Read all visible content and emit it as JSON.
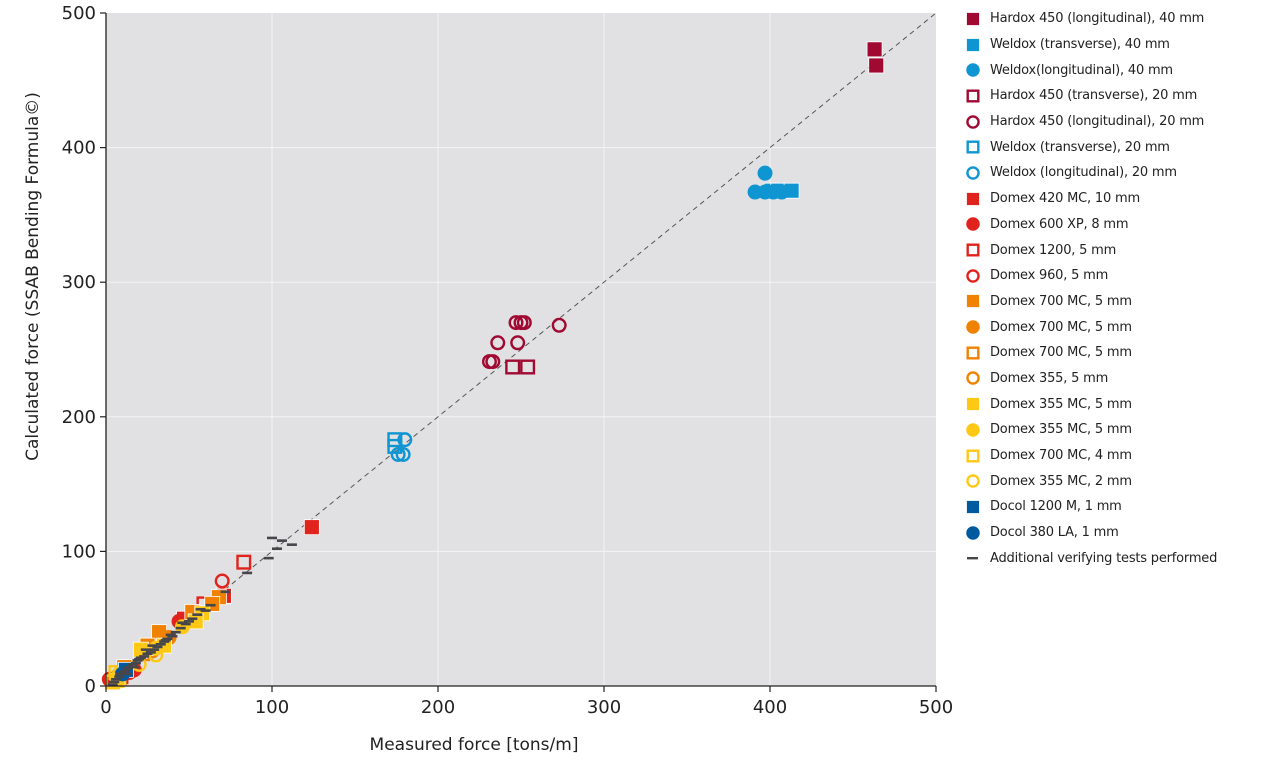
{
  "chart_data": {
    "type": "scatter",
    "title": "",
    "xlabel": "Measured force [tons/m]",
    "ylabel": "Calculated force (SSAB Bending Formula©)",
    "xlim": [
      0,
      500
    ],
    "ylim": [
      0,
      500
    ],
    "xticks": [
      "0",
      "100",
      "200",
      "300",
      "400",
      "500"
    ],
    "yticks": [
      "0",
      "100",
      "200",
      "300",
      "400",
      "500"
    ],
    "grid": true,
    "background": "#e1e1e3",
    "reference_line": {
      "type": "y=x",
      "style": "dashed",
      "color": "#555555"
    },
    "legend_position": "right",
    "series": [
      {
        "name": "Hardox 450 (longitudinal), 40 mm",
        "marker": "square",
        "filled": true,
        "color": "#a00a32",
        "points": [
          [
            463,
            473
          ],
          [
            464,
            461
          ]
        ]
      },
      {
        "name": "Weldox (transverse), 40 mm",
        "marker": "square",
        "filled": true,
        "color": "#0f96d2",
        "points": [
          [
            401,
            368
          ],
          [
            405,
            368
          ],
          [
            413,
            368
          ]
        ]
      },
      {
        "name": "Weldox(longitudinal), 40 mm",
        "marker": "circle",
        "filled": true,
        "color": "#0f96d2",
        "points": [
          [
            397,
            381
          ],
          [
            391,
            367
          ],
          [
            397,
            367
          ],
          [
            402,
            367
          ],
          [
            407,
            367
          ]
        ]
      },
      {
        "name": "Hardox 450 (transverse), 20 mm",
        "marker": "square",
        "filled": false,
        "color": "#a00a32",
        "points": [
          [
            245,
            237
          ],
          [
            254,
            237
          ]
        ]
      },
      {
        "name": "Hardox 450 (longitudinal), 20 mm",
        "marker": "circle",
        "filled": false,
        "color": "#a00a32",
        "points": [
          [
            247,
            270
          ],
          [
            250,
            270
          ],
          [
            252,
            270
          ],
          [
            273,
            268
          ],
          [
            236,
            255
          ],
          [
            248,
            255
          ],
          [
            231,
            241
          ],
          [
            233,
            241
          ]
        ]
      },
      {
        "name": "Weldox (transverse), 20 mm",
        "marker": "square",
        "filled": false,
        "color": "#0f96d2",
        "points": [
          [
            174,
            183
          ],
          [
            174,
            178
          ]
        ]
      },
      {
        "name": "Weldox (longitudinal), 20 mm",
        "marker": "circle",
        "filled": false,
        "color": "#0f96d2",
        "points": [
          [
            180,
            183
          ],
          [
            176,
            172
          ],
          [
            179,
            172
          ]
        ]
      },
      {
        "name": "Domex 420 MC, 10 mm",
        "marker": "square",
        "filled": true,
        "color": "#e1231e",
        "points": [
          [
            124,
            118
          ],
          [
            71,
            67
          ],
          [
            47,
            50
          ]
        ]
      },
      {
        "name": "Domex 600 XP, 8 mm",
        "marker": "circle",
        "filled": true,
        "color": "#e1231e",
        "points": [
          [
            44,
            48
          ],
          [
            14,
            10
          ],
          [
            2,
            5
          ],
          [
            17,
            12
          ]
        ]
      },
      {
        "name": "Domex 1200, 5 mm",
        "marker": "square",
        "filled": false,
        "color": "#e1231e",
        "points": [
          [
            83,
            92
          ],
          [
            59,
            61
          ],
          [
            9,
            7
          ]
        ]
      },
      {
        "name": "Domex 960, 5 mm",
        "marker": "circle",
        "filled": false,
        "color": "#e1231e",
        "points": [
          [
            70,
            78
          ],
          [
            5,
            4
          ]
        ]
      },
      {
        "name": "Domex 700 MC, 5 mm",
        "marker": "square",
        "filled": true,
        "color": "#f08200",
        "points": [
          [
            68,
            66
          ],
          [
            64,
            61
          ],
          [
            52,
            55
          ],
          [
            32,
            40
          ],
          [
            25,
            30
          ],
          [
            11,
            14
          ]
        ]
      },
      {
        "name": "Domex 700 MC, 5 mm",
        "marker": "circle",
        "filled": true,
        "color": "#f08200",
        "points": [
          [
            56,
            52
          ],
          [
            38,
            36
          ]
        ]
      },
      {
        "name": "Domex 700 MC, 5 mm",
        "marker": "square",
        "filled": false,
        "color": "#f08200",
        "points": [
          [
            22,
            24
          ],
          [
            8,
            6
          ]
        ]
      },
      {
        "name": "Domex 355, 5 mm",
        "marker": "circle",
        "filled": false,
        "color": "#f08200",
        "points": [
          [
            28,
            26
          ]
        ]
      },
      {
        "name": "Domex 355 MC, 5 mm",
        "marker": "square",
        "filled": true,
        "color": "#ffc814",
        "points": [
          [
            58,
            54
          ],
          [
            54,
            48
          ],
          [
            35,
            30
          ],
          [
            21,
            27
          ],
          [
            7,
            4
          ]
        ]
      },
      {
        "name": "Domex 355 MC, 5 mm",
        "marker": "circle",
        "filled": true,
        "color": "#ffc814",
        "points": [
          [
            46,
            44
          ],
          [
            30,
            28
          ]
        ]
      },
      {
        "name": "Domex 700 MC, 4 mm",
        "marker": "square",
        "filled": false,
        "color": "#ffc814",
        "points": [
          [
            6,
            10
          ],
          [
            4,
            3
          ]
        ]
      },
      {
        "name": "Domex 355 MC, 2 mm",
        "marker": "circle",
        "filled": false,
        "color": "#ffc814",
        "points": [
          [
            20,
            16
          ],
          [
            30,
            23
          ],
          [
            8,
            9
          ]
        ]
      },
      {
        "name": "Docol 1200 M, 1 mm",
        "marker": "square",
        "filled": true,
        "color": "#005aa0",
        "points": [
          [
            12,
            12
          ]
        ]
      },
      {
        "name": "Docol 380 LA, 1 mm",
        "marker": "circle",
        "filled": true,
        "color": "#005aa0",
        "points": [
          [
            10,
            9
          ]
        ]
      },
      {
        "name": "Additional verifying tests performed",
        "marker": "dash",
        "filled": true,
        "color": "#46464b",
        "points": [
          [
            100,
            110
          ],
          [
            106,
            108
          ],
          [
            103,
            102
          ],
          [
            112,
            105
          ],
          [
            98,
            95
          ],
          [
            85,
            84
          ],
          [
            72,
            70
          ],
          [
            63,
            60
          ],
          [
            57,
            57
          ],
          [
            52,
            50
          ],
          [
            48,
            46
          ],
          [
            45,
            43
          ],
          [
            42,
            40
          ],
          [
            39,
            38
          ],
          [
            37,
            35
          ],
          [
            35,
            33
          ],
          [
            33,
            31
          ],
          [
            31,
            29
          ],
          [
            29,
            27
          ],
          [
            27,
            25
          ],
          [
            25,
            24
          ],
          [
            23,
            22
          ],
          [
            21,
            21
          ],
          [
            19,
            19
          ],
          [
            18,
            17
          ],
          [
            16,
            16
          ],
          [
            14,
            14
          ],
          [
            13,
            13
          ],
          [
            11,
            11
          ],
          [
            9,
            9
          ],
          [
            8,
            7
          ],
          [
            6,
            5
          ],
          [
            5,
            3
          ],
          [
            46,
            47
          ],
          [
            50,
            48
          ],
          [
            55,
            53
          ],
          [
            60,
            56
          ],
          [
            40,
            37
          ],
          [
            36,
            34
          ],
          [
            28,
            30
          ],
          [
            24,
            27
          ],
          [
            20,
            20
          ],
          [
            17,
            14
          ],
          [
            12,
            9
          ],
          [
            4,
            1
          ]
        ]
      }
    ]
  }
}
